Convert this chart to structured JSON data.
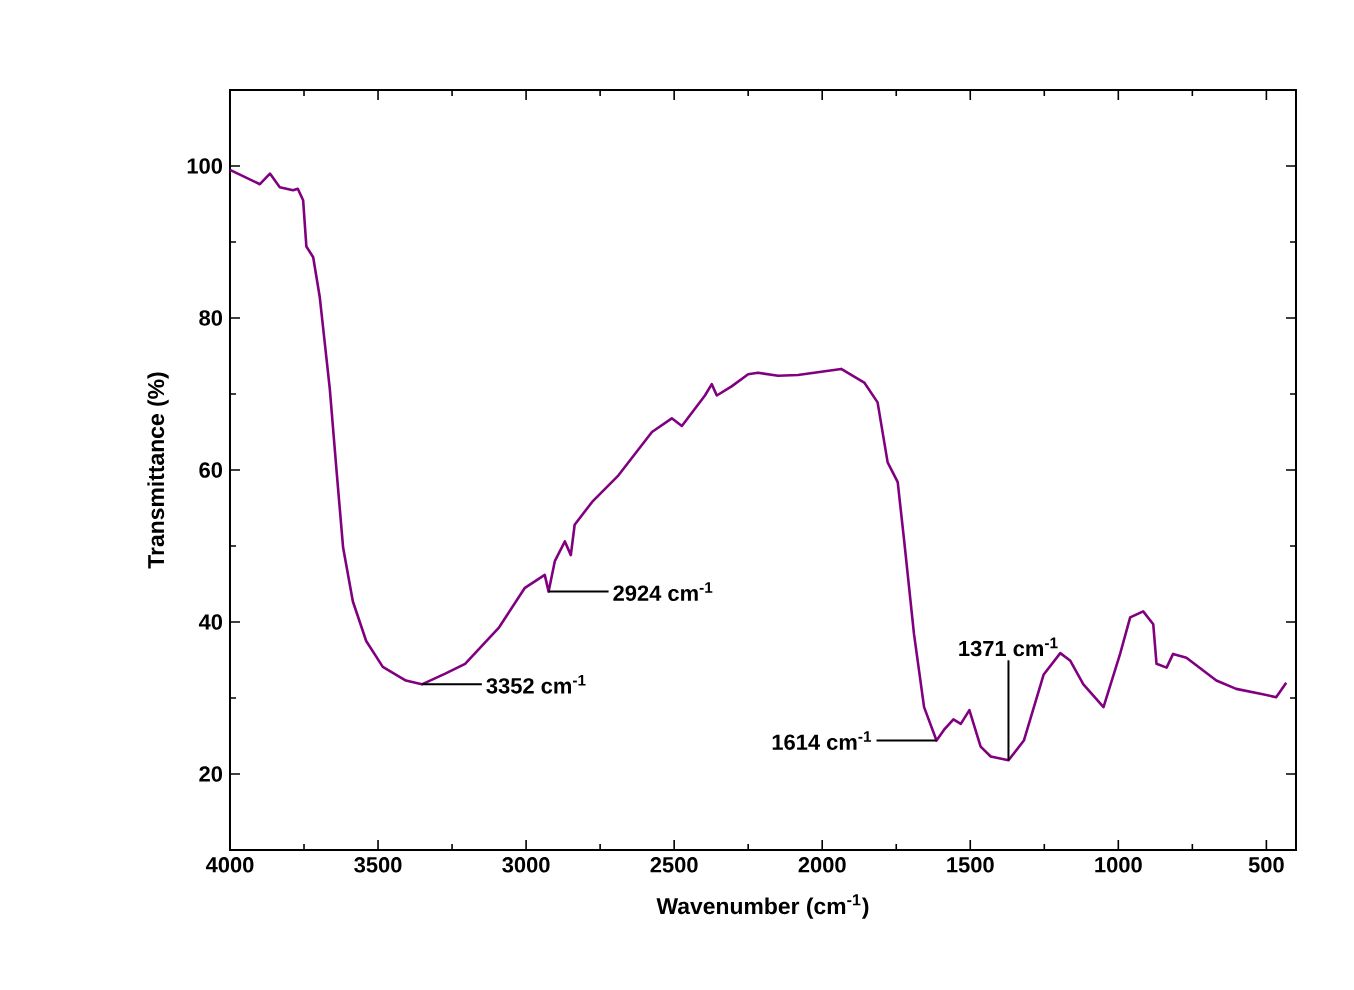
{
  "chart_data": {
    "type": "line",
    "xlabel": "Wavenumber (cm$^{-1}$)",
    "ylabel": "Transmittance (%)",
    "xlim": [
      4000,
      400
    ],
    "ylim": [
      10,
      110
    ],
    "xticks": [
      4000,
      {
        "value": 3750,
        "label": null
      },
      3500,
      {
        "value": 3250,
        "label": null
      },
      3000,
      {
        "value": 2750,
        "label": null
      },
      2500,
      {
        "value": 2250,
        "label": null
      },
      2000,
      {
        "value": 1750,
        "label": null
      },
      1500,
      {
        "value": 1250,
        "label": null
      },
      1000,
      {
        "value": 750,
        "label": null
      },
      500
    ],
    "yticks": [
      20,
      {
        "value": 30,
        "label": null
      },
      40,
      {
        "value": 50,
        "label": null
      },
      60,
      {
        "value": 70,
        "label": null
      },
      80,
      {
        "value": 90,
        "label": null
      },
      100
    ],
    "grid": false,
    "marker": "none",
    "line_style": "solid",
    "series": [
      {
        "color": "#800080",
        "x": [
          4000,
          3899,
          3865,
          3832,
          3787,
          3771,
          3753,
          3742,
          3719,
          3697,
          3663,
          3641,
          3618,
          3585,
          3540,
          3484,
          3406,
          3352,
          3273,
          3206,
          3091,
          3004,
          2937,
          2924,
          2903,
          2869,
          2849,
          2836,
          2777,
          2688,
          2575,
          2508,
          2474,
          2396,
          2373,
          2356,
          2306,
          2250,
          2217,
          2149,
          2082,
          1936,
          1858,
          1813,
          1779,
          1745,
          1723,
          1690,
          1656,
          1614,
          1589,
          1557,
          1532,
          1503,
          1465,
          1431,
          1371,
          1319,
          1252,
          1196,
          1162,
          1118,
          1050,
          994,
          960,
          916,
          882,
          871,
          837,
          815,
          770,
          669,
          602,
          512,
          467,
          433
        ],
        "values": [
          99.5,
          97.6,
          99,
          97.2,
          96.8,
          97,
          95.5,
          89.4,
          88,
          82.8,
          70.7,
          60.3,
          49.8,
          42.7,
          37.5,
          34.1,
          32.3,
          31.8,
          33.2,
          34.5,
          39.3,
          44.5,
          46.2,
          44,
          48,
          50.6,
          48.8,
          52.8,
          55.8,
          59.3,
          65,
          66.8,
          65.8,
          69.8,
          71.3,
          69.8,
          71,
          72.6,
          72.8,
          72.4,
          72.5,
          73.3,
          71.5,
          68.9,
          61,
          58.4,
          50.6,
          38.4,
          28.8,
          24.4,
          25.8,
          27.2,
          26.6,
          28.4,
          23.6,
          22.3,
          21.8,
          24.4,
          33.1,
          35.9,
          34.9,
          31.8,
          28.8,
          35.8,
          40.6,
          41.4,
          39.7,
          34.5,
          34,
          35.8,
          35.3,
          32.3,
          31.2,
          30.5,
          30.1,
          32
        ]
      }
    ],
    "annotations": [
      {
        "text": "3352 cm$^{-1}$",
        "x": 3352,
        "y": 31.8
      },
      {
        "text": "2924 cm$^{-1}$",
        "x": 2924,
        "y": 44
      },
      {
        "text": "1614 cm$^{-1}$",
        "x": 1614,
        "y": 24.4
      },
      {
        "text": "1371 cm$^{-1}$",
        "x": 1371,
        "y": 21.8
      }
    ]
  }
}
